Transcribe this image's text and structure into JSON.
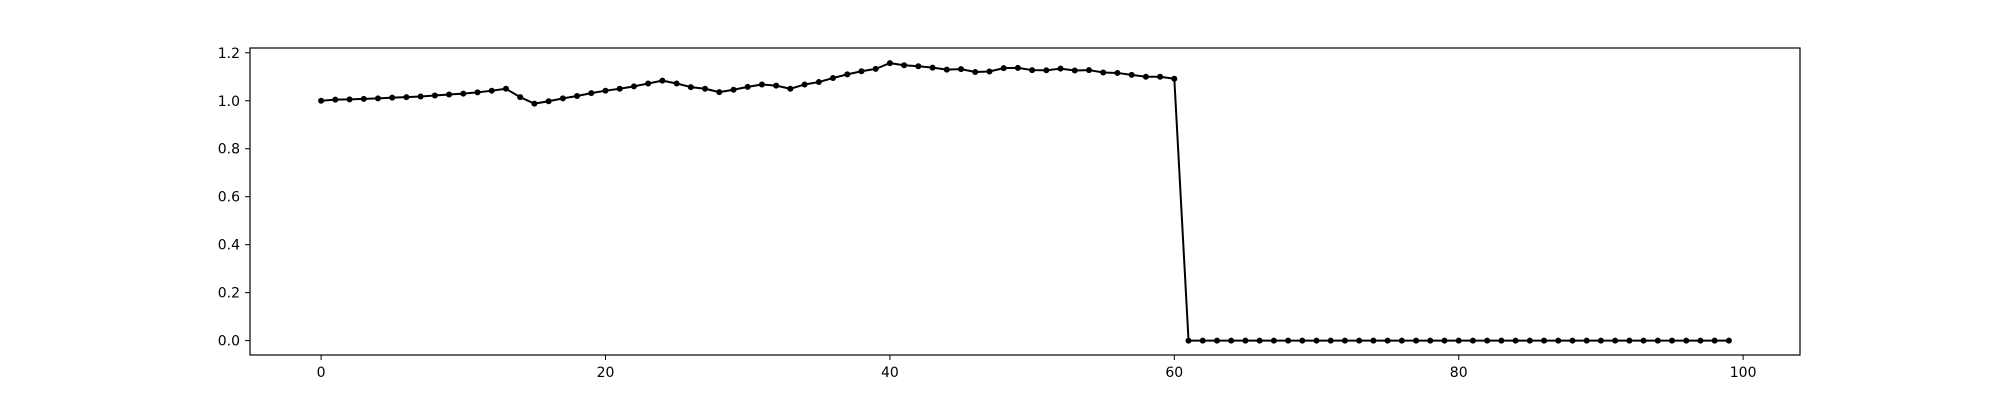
{
  "chart_data": {
    "type": "line",
    "title": "",
    "xlabel": "",
    "ylabel": "",
    "xlim": [
      -5,
      104
    ],
    "ylim": [
      -0.06,
      1.22
    ],
    "xticks": [
      0,
      20,
      40,
      60,
      80,
      100
    ],
    "xtick_labels": [
      "0",
      "20",
      "40",
      "60",
      "80",
      "100"
    ],
    "yticks": [
      0.0,
      0.2,
      0.4,
      0.6,
      0.8,
      1.0,
      1.2
    ],
    "ytick_labels": [
      "0.0",
      "0.2",
      "0.4",
      "0.6",
      "0.8",
      "1.0",
      "1.2"
    ],
    "grid": false,
    "marker": "circle",
    "line_color": "#000000",
    "series": [
      {
        "x": [
          0,
          1,
          2,
          3,
          4,
          5,
          6,
          7,
          8,
          9,
          10,
          11,
          12,
          13,
          14,
          15,
          16,
          17,
          18,
          19,
          20,
          21,
          22,
          23,
          24,
          25,
          26,
          27,
          28,
          29,
          30,
          31,
          32,
          33,
          34,
          35,
          36,
          37,
          38,
          39,
          40,
          41,
          42,
          43,
          44,
          45,
          46,
          47,
          48,
          49,
          50,
          51,
          52,
          53,
          54,
          55,
          56,
          57,
          58,
          59,
          60,
          61,
          62,
          63,
          64,
          65,
          66,
          67,
          68,
          69,
          70,
          71,
          72,
          73,
          74,
          75,
          76,
          77,
          78,
          79,
          80,
          81,
          82,
          83,
          84,
          85,
          86,
          87,
          88,
          89,
          90,
          91,
          92,
          93,
          94,
          95,
          96,
          97,
          98,
          99
        ],
        "y": [
          1.0,
          1.005,
          1.006,
          1.008,
          1.01,
          1.013,
          1.015,
          1.018,
          1.022,
          1.026,
          1.03,
          1.035,
          1.042,
          1.05,
          1.015,
          0.988,
          0.998,
          1.01,
          1.02,
          1.032,
          1.042,
          1.05,
          1.06,
          1.072,
          1.084,
          1.072,
          1.057,
          1.05,
          1.036,
          1.046,
          1.058,
          1.068,
          1.063,
          1.05,
          1.068,
          1.078,
          1.095,
          1.11,
          1.123,
          1.133,
          1.157,
          1.148,
          1.144,
          1.138,
          1.13,
          1.132,
          1.12,
          1.122,
          1.136,
          1.137,
          1.128,
          1.127,
          1.134,
          1.126,
          1.128,
          1.118,
          1.116,
          1.108,
          1.1,
          1.1,
          1.092,
          0.0,
          0.0,
          0.0,
          0.0,
          0.0,
          0.0,
          0.0,
          0.0,
          0.0,
          0.0,
          0.0,
          0.0,
          0.0,
          0.0,
          0.0,
          0.0,
          0.0,
          0.0,
          0.0,
          0.0,
          0.0,
          0.0,
          0.0,
          0.0,
          0.0,
          0.0,
          0.0,
          0.0,
          0.0,
          0.0,
          0.0,
          0.0,
          0.0,
          0.0,
          0.0,
          0.0,
          0.0,
          0.0,
          0.0
        ]
      }
    ]
  }
}
